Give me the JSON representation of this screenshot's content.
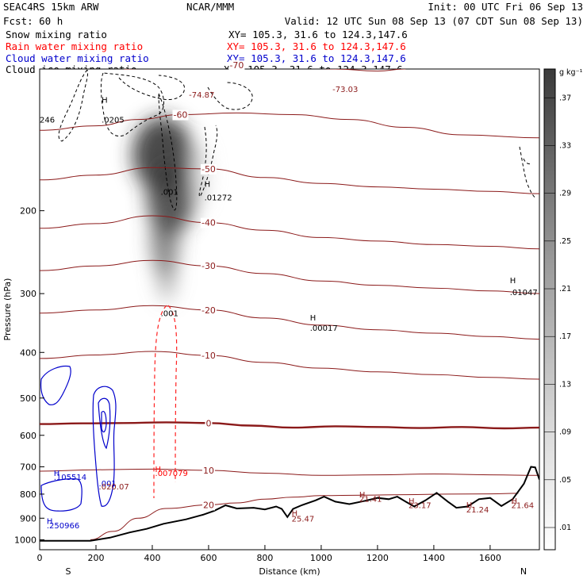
{
  "header": {
    "left": [
      "SEAC4RS 15km ARW",
      "Fcst:   60 h"
    ],
    "center": "NCAR/MMM",
    "init": "Init: 00 UTC Fri 06 Sep 13",
    "valid": "Valid: 12 UTC Sun 08 Sep 13 (07 CDT Sun 08 Sep 13)",
    "fields": [
      {
        "name": "Snow mixing ratio",
        "color": "#000000"
      },
      {
        "name": "Rain water mixing ratio",
        "color": "#ff0000"
      },
      {
        "name": "Cloud water mixing ratio",
        "color": "#0000cc"
      },
      {
        "name": "Cloud ice mixing ratio",
        "color": "#000000"
      }
    ],
    "xy": "XY= 105.3, 31.6 to 124.3,147.6"
  },
  "chart_data": {
    "type": "cross-section",
    "xlabel": "Distance (km)",
    "ylabel": "Pressure (hPa)",
    "xlim": [
      0,
      1775
    ],
    "ylim": [
      1050,
      100
    ],
    "y_scale": "log",
    "x_ticks": [
      "0",
      "200",
      "400",
      "600",
      "800",
      "1000",
      "1200",
      "1400",
      "1600"
    ],
    "y_ticks": [
      "200",
      "300",
      "400",
      "500",
      "600",
      "700",
      "800",
      "900",
      "1000"
    ],
    "end_labels": {
      "left": "S",
      "right": "N"
    },
    "colorbar": {
      "unit": "g kg⁻¹",
      "ticks": [
        ".01",
        ".05",
        ".09",
        ".13",
        ".17",
        ".21",
        ".25",
        ".29",
        ".33",
        ".37"
      ]
    },
    "temperature_contour_labels": [
      "-70",
      "-60",
      "-50",
      "-40",
      "-30",
      "-20",
      "-10",
      "0",
      "10",
      "20"
    ],
    "temperature_contours": [
      {
        "label": "-70",
        "points": [
          [
            300,
            100
          ],
          [
            500,
            98
          ],
          [
            700,
            98
          ],
          [
            900,
            99
          ],
          [
            1050,
            100
          ],
          [
            1200,
            101
          ],
          [
            1300,
            100
          ]
        ]
      },
      {
        "label": "-60",
        "points": [
          [
            0,
            135
          ],
          [
            200,
            132
          ],
          [
            350,
            128
          ],
          [
            500,
            125
          ],
          [
            700,
            124
          ],
          [
            900,
            125
          ],
          [
            1100,
            128
          ],
          [
            1300,
            133
          ],
          [
            1500,
            138
          ],
          [
            1775,
            140
          ]
        ]
      },
      {
        "label": "-50",
        "points": [
          [
            0,
            172
          ],
          [
            200,
            168
          ],
          [
            400,
            162
          ],
          [
            600,
            163
          ],
          [
            800,
            170
          ],
          [
            1000,
            175
          ],
          [
            1200,
            178
          ],
          [
            1400,
            180
          ],
          [
            1600,
            182
          ],
          [
            1775,
            184
          ]
        ]
      },
      {
        "label": "-40",
        "points": [
          [
            0,
            218
          ],
          [
            200,
            213
          ],
          [
            400,
            205
          ],
          [
            600,
            212
          ],
          [
            800,
            220
          ],
          [
            1000,
            228
          ],
          [
            1200,
            232
          ],
          [
            1400,
            236
          ],
          [
            1600,
            238
          ],
          [
            1775,
            241
          ]
        ]
      },
      {
        "label": "-30",
        "points": [
          [
            0,
            268
          ],
          [
            200,
            262
          ],
          [
            400,
            255
          ],
          [
            600,
            262
          ],
          [
            800,
            272
          ],
          [
            1000,
            282
          ],
          [
            1200,
            288
          ],
          [
            1400,
            292
          ],
          [
            1600,
            296
          ],
          [
            1775,
            300
          ]
        ]
      },
      {
        "label": "-20",
        "points": [
          [
            0,
            330
          ],
          [
            200,
            325
          ],
          [
            400,
            318
          ],
          [
            600,
            325
          ],
          [
            800,
            338
          ],
          [
            1000,
            350
          ],
          [
            1200,
            358
          ],
          [
            1400,
            364
          ],
          [
            1600,
            370
          ],
          [
            1775,
            375
          ]
        ]
      },
      {
        "label": "-10",
        "points": [
          [
            0,
            412
          ],
          [
            200,
            405
          ],
          [
            400,
            398
          ],
          [
            600,
            406
          ],
          [
            800,
            420
          ],
          [
            1000,
            432
          ],
          [
            1200,
            440
          ],
          [
            1400,
            446
          ],
          [
            1600,
            452
          ],
          [
            1775,
            456
          ]
        ]
      },
      {
        "label": "0",
        "points": [
          [
            0,
            568
          ],
          [
            150,
            566
          ],
          [
            300,
            565
          ],
          [
            450,
            563
          ],
          [
            600,
            565
          ],
          [
            750,
            572
          ],
          [
            900,
            578
          ],
          [
            1050,
            574
          ],
          [
            1200,
            576
          ],
          [
            1350,
            579
          ],
          [
            1500,
            576
          ],
          [
            1650,
            580
          ],
          [
            1775,
            578
          ]
        ]
      },
      {
        "label": "10",
        "points": [
          [
            0,
            715
          ],
          [
            200,
            710
          ],
          [
            400,
            708
          ],
          [
            600,
            712
          ],
          [
            800,
            722
          ],
          [
            1000,
            730
          ],
          [
            1200,
            728
          ],
          [
            1400,
            725
          ],
          [
            1600,
            728
          ],
          [
            1775,
            730
          ]
        ]
      },
      {
        "label": "20",
        "points": [
          [
            180,
            1000
          ],
          [
            260,
            960
          ],
          [
            350,
            900
          ],
          [
            450,
            858
          ],
          [
            600,
            843
          ],
          [
            700,
            835
          ],
          [
            800,
            820
          ],
          [
            900,
            812
          ],
          [
            1000,
            806
          ],
          [
            1150,
            804
          ],
          [
            1300,
            802
          ],
          [
            1450,
            800
          ],
          [
            1600,
            799
          ],
          [
            1700,
            797
          ]
        ]
      }
    ],
    "terrain": {
      "points": [
        [
          0,
          1005
        ],
        [
          180,
          1005
        ],
        [
          250,
          990
        ],
        [
          320,
          965
        ],
        [
          380,
          948
        ],
        [
          440,
          925
        ],
        [
          520,
          905
        ],
        [
          580,
          885
        ],
        [
          620,
          868
        ],
        [
          660,
          845
        ],
        [
          700,
          858
        ],
        [
          760,
          855
        ],
        [
          800,
          862
        ],
        [
          840,
          850
        ],
        [
          860,
          860
        ],
        [
          880,
          895
        ],
        [
          900,
          860
        ],
        [
          930,
          845
        ],
        [
          980,
          825
        ],
        [
          1010,
          810
        ],
        [
          1050,
          830
        ],
        [
          1100,
          840
        ],
        [
          1150,
          828
        ],
        [
          1200,
          815
        ],
        [
          1240,
          820
        ],
        [
          1270,
          810
        ],
        [
          1300,
          830
        ],
        [
          1330,
          850
        ],
        [
          1370,
          825
        ],
        [
          1410,
          795
        ],
        [
          1450,
          830
        ],
        [
          1480,
          855
        ],
        [
          1520,
          850
        ],
        [
          1560,
          820
        ],
        [
          1600,
          815
        ],
        [
          1640,
          848
        ],
        [
          1680,
          820
        ],
        [
          1720,
          760
        ],
        [
          1745,
          700
        ],
        [
          1760,
          702
        ],
        [
          1775,
          745
        ]
      ]
    },
    "annotations": [
      {
        "x": 0,
        "p": 130,
        "text": "246",
        "color": "#000000"
      },
      {
        "x": 220,
        "p": 118,
        "text": "H",
        "color": "#000000"
      },
      {
        "x": 220,
        "p": 130,
        "text": ".0205",
        "color": "#000000"
      },
      {
        "x": 430,
        "p": 185,
        "text": ".001",
        "color": "#000000"
      },
      {
        "x": 430,
        "p": 335,
        "text": ".001",
        "color": "#000000"
      },
      {
        "x": 585,
        "p": 178,
        "text": "H",
        "color": "#000000"
      },
      {
        "x": 585,
        "p": 190,
        "text": ".01272",
        "color": "#000000"
      },
      {
        "x": 960,
        "p": 342,
        "text": "H",
        "color": "#000000"
      },
      {
        "x": 960,
        "p": 360,
        "text": ".00017",
        "color": "#000000"
      },
      {
        "x": 1670,
        "p": 285,
        "text": "H",
        "color": "#000000"
      },
      {
        "x": 1670,
        "p": 302,
        "text": ".01047",
        "color": "#000000"
      },
      {
        "x": 530,
        "p": 115,
        "text": "-74.87",
        "color": "#8b1a1a"
      },
      {
        "x": 1040,
        "p": 112,
        "text": "-73.03",
        "color": "#8b1a1a"
      },
      {
        "x": 410,
        "p": 718,
        "text": "H",
        "color": "#ff0000"
      },
      {
        "x": 410,
        "p": 732,
        "text": ".007079",
        "color": "#ff0000"
      },
      {
        "x": 50,
        "p": 732,
        "text": "H",
        "color": "#0000cc"
      },
      {
        "x": 50,
        "p": 746,
        "text": ".105514",
        "color": "#0000cc"
      },
      {
        "x": 210,
        "p": 770,
        "text": ".001",
        "color": "#0000cc"
      },
      {
        "x": 210,
        "p": 782,
        "text": ".020.07",
        "color": "#8b1a1a"
      },
      {
        "x": 25,
        "p": 925,
        "text": "H",
        "color": "#0000cc"
      },
      {
        "x": 25,
        "p": 945,
        "text": ".250966",
        "color": "#0000cc"
      },
      {
        "x": 895,
        "p": 890,
        "text": "H",
        "color": "#8b1a1a"
      },
      {
        "x": 895,
        "p": 915,
        "text": "25.47",
        "color": "#8b1a1a"
      },
      {
        "x": 1135,
        "p": 812,
        "text": "H",
        "color": "#8b1a1a"
      },
      {
        "x": 1135,
        "p": 830,
        "text": "21.41",
        "color": "#8b1a1a"
      },
      {
        "x": 1310,
        "p": 838,
        "text": "H",
        "color": "#8b1a1a"
      },
      {
        "x": 1310,
        "p": 857,
        "text": "23.17",
        "color": "#8b1a1a"
      },
      {
        "x": 1515,
        "p": 855,
        "text": "H",
        "color": "#8b1a1a"
      },
      {
        "x": 1515,
        "p": 875,
        "text": "21.24",
        "color": "#8b1a1a"
      },
      {
        "x": 1675,
        "p": 838,
        "text": "H",
        "color": "#8b1a1a"
      },
      {
        "x": 1675,
        "p": 857,
        "text": "21.64",
        "color": "#8b1a1a"
      }
    ]
  }
}
